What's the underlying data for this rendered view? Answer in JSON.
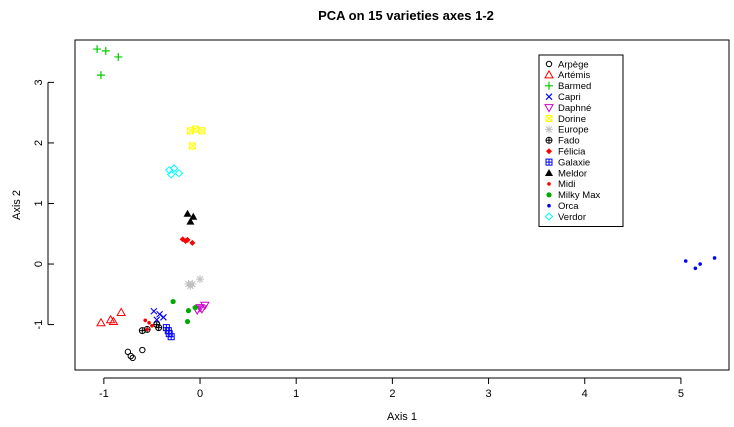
{
  "chart_data": {
    "type": "scatter",
    "title": "PCA on 15 varieties axes 1-2",
    "xlabel": "Axis 1",
    "ylabel": "Axis 2",
    "xlim": [
      -1.3,
      5.5
    ],
    "ylim": [
      -1.75,
      3.7
    ],
    "xticks": [
      "-1",
      "0",
      "1",
      "2",
      "3",
      "4",
      "5"
    ],
    "yticks": [
      "-1",
      "0",
      "1",
      "2",
      "3"
    ],
    "xtick_values": [
      -1,
      0,
      1,
      2,
      3,
      4,
      5
    ],
    "ytick_values": [
      -1,
      0,
      1,
      2,
      3
    ],
    "grid": false,
    "legend_position": "top-right",
    "series": [
      {
        "name": "Arpège",
        "color": "#000000",
        "marker": "circle-open",
        "x": [
          -0.75,
          -0.7,
          -0.6,
          -0.72
        ],
        "y": [
          -1.45,
          -1.55,
          -1.42,
          -1.52
        ]
      },
      {
        "name": "Artémis",
        "color": "#ff0000",
        "marker": "triangle-open",
        "x": [
          -1.03,
          -0.93,
          -0.9,
          -0.82
        ],
        "y": [
          -0.97,
          -0.92,
          -0.95,
          -0.8
        ]
      },
      {
        "name": "Barmed",
        "color": "#00cc00",
        "marker": "plus",
        "x": [
          -1.07,
          -0.98,
          -0.85,
          -1.03
        ],
        "y": [
          3.55,
          3.52,
          3.42,
          3.12
        ]
      },
      {
        "name": "Capri",
        "color": "#0000ff",
        "marker": "x",
        "x": [
          -0.48,
          -0.42,
          -0.38,
          -0.45
        ],
        "y": [
          -0.78,
          -0.83,
          -0.88,
          -0.92
        ]
      },
      {
        "name": "Daphné",
        "color": "#cc00cc",
        "marker": "triangle-down-open",
        "x": [
          0.05,
          0.0,
          -0.03,
          0.02
        ],
        "y": [
          -0.68,
          -0.72,
          -0.76,
          -0.74
        ]
      },
      {
        "name": "Dorine",
        "color": "#ffff00",
        "marker": "square-x",
        "x": [
          -0.1,
          -0.05,
          0.02,
          -0.08
        ],
        "y": [
          2.2,
          2.23,
          2.2,
          1.95
        ]
      },
      {
        "name": "Europe",
        "color": "#bfbfbf",
        "marker": "asterisk",
        "x": [
          -0.12,
          -0.08,
          0.0,
          -0.1
        ],
        "y": [
          -0.33,
          -0.33,
          -0.25,
          -0.36
        ]
      },
      {
        "name": "Fado",
        "color": "#000000",
        "marker": "circle-plus",
        "x": [
          -0.6,
          -0.55,
          -0.45,
          -0.43
        ],
        "y": [
          -1.1,
          -1.08,
          -1.0,
          -1.05
        ]
      },
      {
        "name": "Félicia",
        "color": "#ff0000",
        "marker": "diamond",
        "x": [
          -0.18,
          -0.13,
          -0.08,
          -0.15
        ],
        "y": [
          0.41,
          0.4,
          0.35,
          0.38
        ]
      },
      {
        "name": "Galaxie",
        "color": "#0000ff",
        "marker": "square-plus",
        "x": [
          -0.35,
          -0.33,
          -0.32,
          -0.3
        ],
        "y": [
          -1.05,
          -1.1,
          -1.15,
          -1.2
        ]
      },
      {
        "name": "Meldor",
        "color": "#000000",
        "marker": "triangle",
        "x": [
          -0.13,
          -0.07,
          -0.1
        ],
        "y": [
          0.83,
          0.78,
          0.7
        ]
      },
      {
        "name": "Midi",
        "color": "#ff0000",
        "marker": "dot",
        "x": [
          -0.57,
          -0.53,
          -0.5,
          -0.55
        ],
        "y": [
          -0.93,
          -0.97,
          -1.02,
          -1.08
        ]
      },
      {
        "name": "Milky Max",
        "color": "#00aa00",
        "marker": "circle",
        "x": [
          -0.28,
          -0.12,
          -0.13,
          -0.05
        ],
        "y": [
          -0.62,
          -0.77,
          -0.95,
          -0.72
        ]
      },
      {
        "name": "Orca",
        "color": "#0000ff",
        "marker": "dot",
        "x": [
          5.05,
          5.15,
          5.2,
          5.35
        ],
        "y": [
          0.05,
          -0.07,
          0.0,
          0.1
        ]
      },
      {
        "name": "Verdor",
        "color": "#00ffff",
        "marker": "diamond-open",
        "x": [
          -0.32,
          -0.27,
          -0.22,
          -0.3
        ],
        "y": [
          1.55,
          1.58,
          1.5,
          1.48
        ]
      }
    ]
  }
}
